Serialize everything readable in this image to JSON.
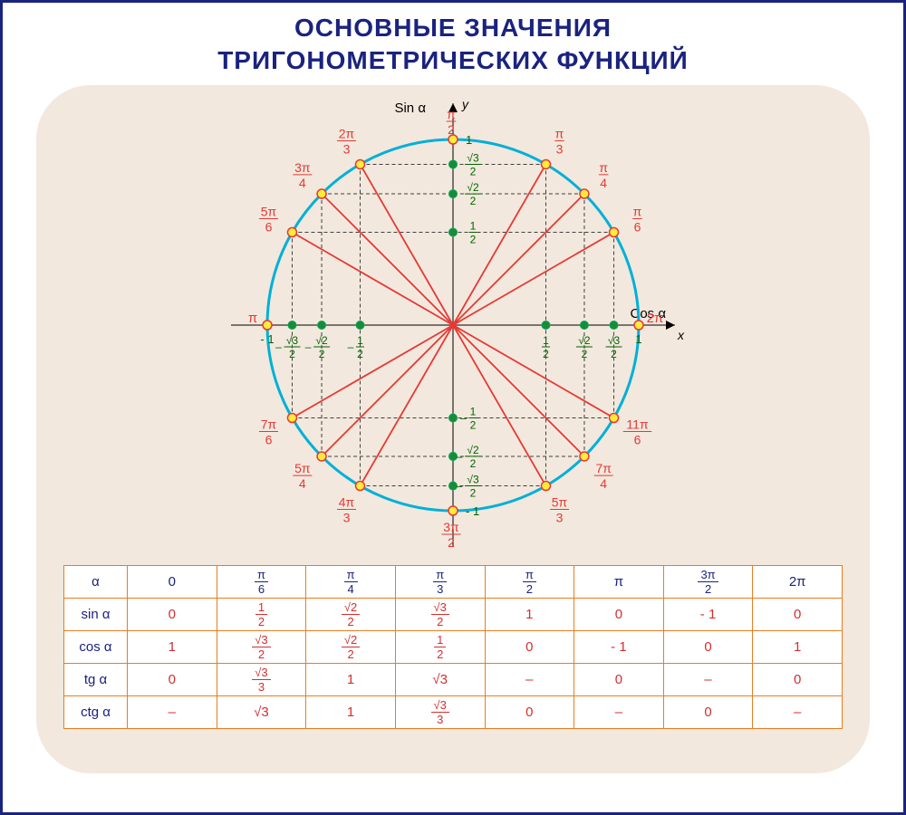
{
  "title_line1": "ОСНОВНЫЕ ЗНАЧЕНИЯ",
  "title_line2": "ТРИГОНОМЕТРИЧЕСКИХ ФУНКЦИЙ",
  "colors": {
    "border": "#1a237e",
    "panel_bg": "#f2e8dd",
    "circle": "#00b0d8",
    "radii": "#e53935",
    "angle_labels": "#e53935",
    "axis_labels": "#006400",
    "axis_arrow": "#000000",
    "dot_circle_fill": "#ffeb3b",
    "dot_circle_stroke": "#e53935",
    "dot_axis_fill": "#1b8a3a",
    "grid_dash": "#404040",
    "table_border": "#e67e22",
    "table_header": "#1a237e",
    "table_val": "#d32f2f"
  },
  "unit_circle": {
    "type": "diagram",
    "radius": 1,
    "cx_svg": 280,
    "cy_svg": 255,
    "r_svg": 205,
    "axis_extent": 245,
    "axis_label_sin": "Sin α",
    "axis_label_cos": "Cos α",
    "axis_y": "y",
    "axis_x": "x",
    "angles_deg": [
      0,
      30,
      45,
      60,
      90,
      120,
      135,
      150,
      180,
      210,
      225,
      240,
      270,
      300,
      315,
      330
    ],
    "angle_labels": [
      {
        "deg": 0,
        "text": "2π",
        "frac": false
      },
      {
        "deg": 30,
        "num": "π",
        "den": "6",
        "frac": true
      },
      {
        "deg": 45,
        "num": "π",
        "den": "4",
        "frac": true
      },
      {
        "deg": 60,
        "num": "π",
        "den": "3",
        "frac": true
      },
      {
        "deg": 90,
        "num": "π",
        "den": "2",
        "frac": true
      },
      {
        "deg": 120,
        "num": "2π",
        "den": "3",
        "frac": true
      },
      {
        "deg": 135,
        "num": "3π",
        "den": "4",
        "frac": true
      },
      {
        "deg": 150,
        "num": "5π",
        "den": "6",
        "frac": true
      },
      {
        "deg": 180,
        "text": "π",
        "frac": false
      },
      {
        "deg": 210,
        "num": "7π",
        "den": "6",
        "frac": true
      },
      {
        "deg": 225,
        "num": "5π",
        "den": "4",
        "frac": true
      },
      {
        "deg": 240,
        "num": "4π",
        "den": "3",
        "frac": true
      },
      {
        "deg": 270,
        "num": "3π",
        "den": "2",
        "frac": true
      },
      {
        "deg": 300,
        "num": "5π",
        "den": "3",
        "frac": true
      },
      {
        "deg": 315,
        "num": "7π",
        "den": "4",
        "frac": true
      },
      {
        "deg": 330,
        "num": "11π",
        "den": "6",
        "frac": true
      }
    ],
    "x_axis_ticks": [
      {
        "v": -1,
        "label": "- 1",
        "frac": false
      },
      {
        "v": -0.866,
        "num": "√3",
        "den": "2",
        "neg": true,
        "frac": true
      },
      {
        "v": -0.707,
        "num": "√2",
        "den": "2",
        "neg": true,
        "frac": true
      },
      {
        "v": -0.5,
        "num": "1",
        "den": "2",
        "neg": true,
        "frac": true
      },
      {
        "v": 0.5,
        "num": "1",
        "den": "2",
        "frac": true
      },
      {
        "v": 0.707,
        "num": "√2",
        "den": "2",
        "frac": true
      },
      {
        "v": 0.866,
        "num": "√3",
        "den": "2",
        "frac": true
      },
      {
        "v": 1,
        "label": "1",
        "frac": false
      }
    ],
    "y_axis_ticks": [
      {
        "v": 1,
        "label": "1",
        "frac": false
      },
      {
        "v": 0.866,
        "num": "√3",
        "den": "2",
        "frac": true
      },
      {
        "v": 0.707,
        "num": "√2",
        "den": "2",
        "frac": true
      },
      {
        "v": 0.5,
        "num": "1",
        "den": "2",
        "frac": true
      },
      {
        "v": -0.5,
        "num": "1",
        "den": "2",
        "neg": true,
        "frac": true
      },
      {
        "v": -0.707,
        "num": "√2",
        "den": "2",
        "neg": true,
        "frac": true
      },
      {
        "v": -0.866,
        "num": "√3",
        "den": "2",
        "neg": true,
        "frac": true
      },
      {
        "v": -1,
        "label": "- 1",
        "frac": false
      }
    ]
  },
  "table": {
    "columns": [
      "α",
      "0",
      "π/6",
      "π/4",
      "π/3",
      "π/2",
      "π",
      "3π/2",
      "2π"
    ],
    "columns_display": [
      {
        "text": "α"
      },
      {
        "text": "0"
      },
      {
        "frac": true,
        "num": "π",
        "den": "6"
      },
      {
        "frac": true,
        "num": "π",
        "den": "4"
      },
      {
        "frac": true,
        "num": "π",
        "den": "3"
      },
      {
        "frac": true,
        "num": "π",
        "den": "2"
      },
      {
        "text": "π"
      },
      {
        "frac": true,
        "num": "3π",
        "den": "2"
      },
      {
        "text": "2π"
      }
    ],
    "rows": [
      {
        "label": "sin α",
        "cells": [
          {
            "text": "0"
          },
          {
            "frac": true,
            "num": "1",
            "den": "2"
          },
          {
            "frac": true,
            "num": "√2",
            "den": "2"
          },
          {
            "frac": true,
            "num": "√3",
            "den": "2"
          },
          {
            "text": "1"
          },
          {
            "text": "0"
          },
          {
            "text": "- 1"
          },
          {
            "text": "0"
          }
        ]
      },
      {
        "label": "cos α",
        "cells": [
          {
            "text": "1"
          },
          {
            "frac": true,
            "num": "√3",
            "den": "2"
          },
          {
            "frac": true,
            "num": "√2",
            "den": "2"
          },
          {
            "frac": true,
            "num": "1",
            "den": "2"
          },
          {
            "text": "0"
          },
          {
            "text": "- 1"
          },
          {
            "text": "0"
          },
          {
            "text": "1"
          }
        ]
      },
      {
        "label": "tg α",
        "cells": [
          {
            "text": "0"
          },
          {
            "frac": true,
            "num": "√3",
            "den": "3"
          },
          {
            "text": "1"
          },
          {
            "text": "√3"
          },
          {
            "text": "–"
          },
          {
            "text": "0"
          },
          {
            "text": "–"
          },
          {
            "text": "0"
          }
        ]
      },
      {
        "label": "ctg α",
        "cells": [
          {
            "text": "–"
          },
          {
            "text": "√3"
          },
          {
            "text": "1"
          },
          {
            "frac": true,
            "num": "√3",
            "den": "3"
          },
          {
            "text": "0"
          },
          {
            "text": "–"
          },
          {
            "text": "0"
          },
          {
            "text": "–"
          }
        ]
      }
    ]
  }
}
